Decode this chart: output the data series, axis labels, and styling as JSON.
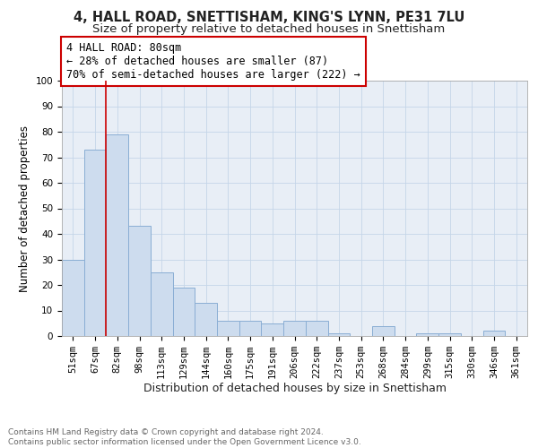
{
  "title1": "4, HALL ROAD, SNETTISHAM, KING'S LYNN, PE31 7LU",
  "title2": "Size of property relative to detached houses in Snettisham",
  "xlabel": "Distribution of detached houses by size in Snettisham",
  "ylabel": "Number of detached properties",
  "bar_color": "#cddcee",
  "bar_edge_color": "#8aaed4",
  "bar_categories": [
    "51sqm",
    "67sqm",
    "82sqm",
    "98sqm",
    "113sqm",
    "129sqm",
    "144sqm",
    "160sqm",
    "175sqm",
    "191sqm",
    "206sqm",
    "222sqm",
    "237sqm",
    "253sqm",
    "268sqm",
    "284sqm",
    "299sqm",
    "315sqm",
    "330sqm",
    "346sqm",
    "361sqm"
  ],
  "bar_values": [
    30,
    73,
    79,
    43,
    25,
    19,
    13,
    6,
    6,
    5,
    6,
    6,
    1,
    0,
    4,
    0,
    1,
    1,
    0,
    2,
    0
  ],
  "vline_color": "#cc0000",
  "vline_index": 2,
  "annotation_line1": "4 HALL ROAD: 80sqm",
  "annotation_line2": "← 28% of detached houses are smaller (87)",
  "annotation_line3": "70% of semi-detached houses are larger (222) →",
  "annotation_box_color": "#cc0000",
  "annotation_box_bg": "#ffffff",
  "ylim": [
    0,
    100
  ],
  "yticks": [
    0,
    10,
    20,
    30,
    40,
    50,
    60,
    70,
    80,
    90,
    100
  ],
  "grid_color": "#c5d5e8",
  "bg_color": "#e8eef6",
  "footer_text": "Contains HM Land Registry data © Crown copyright and database right 2024.\nContains public sector information licensed under the Open Government Licence v3.0.",
  "title_fontsize": 10.5,
  "subtitle_fontsize": 9.5,
  "tick_fontsize": 7.5,
  "ylabel_fontsize": 8.5,
  "xlabel_fontsize": 9,
  "footer_fontsize": 6.5,
  "annot_fontsize": 8.5
}
